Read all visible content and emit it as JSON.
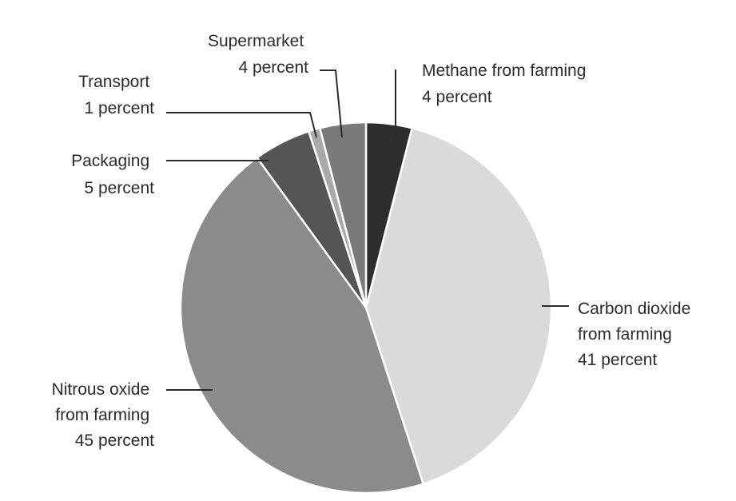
{
  "chart_data": {
    "type": "pie",
    "slices": [
      {
        "lines": [
          "Methane from farming",
          "4 percent"
        ],
        "value": 4,
        "color": "#2d2d2d"
      },
      {
        "lines": [
          "Carbon dioxide",
          "from farming",
          "41 percent"
        ],
        "value": 41,
        "color": "#dadada"
      },
      {
        "lines": [
          "Nitrous oxide",
          "from farming",
          "45 percent"
        ],
        "value": 45,
        "color": "#8b8b8d"
      },
      {
        "lines": [
          "Packaging",
          "5 percent"
        ],
        "value": 5,
        "color": "#555557"
      },
      {
        "lines": [
          "Transport",
          "1 percent"
        ],
        "value": 1,
        "color": "#a9a9ab"
      },
      {
        "lines": [
          "Supermarket",
          "4 percent"
        ],
        "value": 4,
        "color": "#7a7a7c"
      }
    ]
  }
}
